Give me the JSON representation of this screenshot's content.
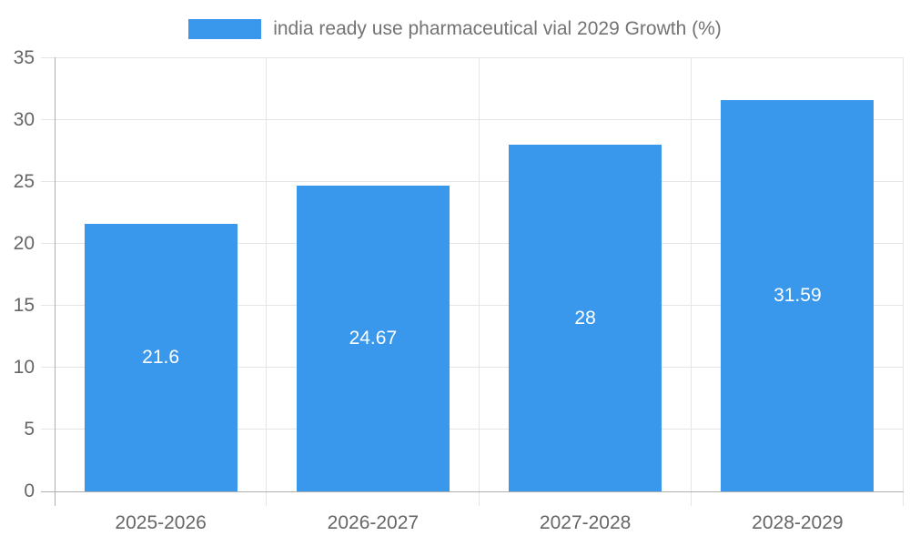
{
  "chart_data": {
    "type": "bar",
    "title": "",
    "series_label": "india ready use pharmaceutical vial 2029 Growth (%)",
    "categories": [
      "2025-2026",
      "2026-2027",
      "2027-2028",
      "2028-2029"
    ],
    "values": [
      21.6,
      24.67,
      28,
      31.59
    ],
    "value_labels": [
      "21.6",
      "24.67",
      "28",
      "31.59"
    ],
    "xlabel": "",
    "ylabel": "",
    "ylim": [
      0,
      35
    ],
    "yticks": [
      0,
      5,
      10,
      15,
      20,
      25,
      30,
      35
    ],
    "grid": true,
    "legend_position": "top"
  },
  "style": {
    "bar_color": "#3998EC",
    "grid_color": "#e5e5e5",
    "axis_color": "#b0b0b0",
    "tick_label_color": "#666666",
    "legend_text_color": "#737373",
    "value_label_color": "#ffffff",
    "background_color": "#ffffff"
  }
}
